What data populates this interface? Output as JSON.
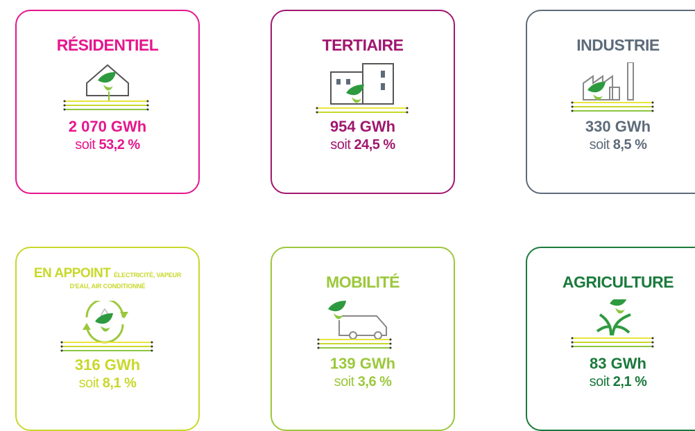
{
  "cards": [
    {
      "title": "RÉSIDENTIEL",
      "value": "2 070 GWh",
      "share_prefix": "soit",
      "share": "53,2 %",
      "color": "#e5168c"
    },
    {
      "title": "TERTIAIRE",
      "value": "954 GWh",
      "share_prefix": "soit",
      "share": "24,5 %",
      "color": "#a0176f"
    },
    {
      "title": "INDUSTRIE",
      "value": "330 GWh",
      "share_prefix": "soit",
      "share": "8,5 %",
      "color": "#5d6b7a"
    },
    {
      "title": "EN APPOINT",
      "note": "ÉLECTRICITÉ, VAPEUR D'EAU, AIR CONDITIONNÉ",
      "value": "316 GWh",
      "share_prefix": "soit",
      "share": "8,1 %",
      "color": "#c8d82a"
    },
    {
      "title": "MOBILITÉ",
      "value": "139 GWh",
      "share_prefix": "soit",
      "share": "3,6 %",
      "color": "#9cc83c"
    },
    {
      "title": "AGRICULTURE",
      "value": "83 GWh",
      "share_prefix": "soit",
      "share": "2,1 %",
      "color": "#1a7a3c"
    }
  ]
}
